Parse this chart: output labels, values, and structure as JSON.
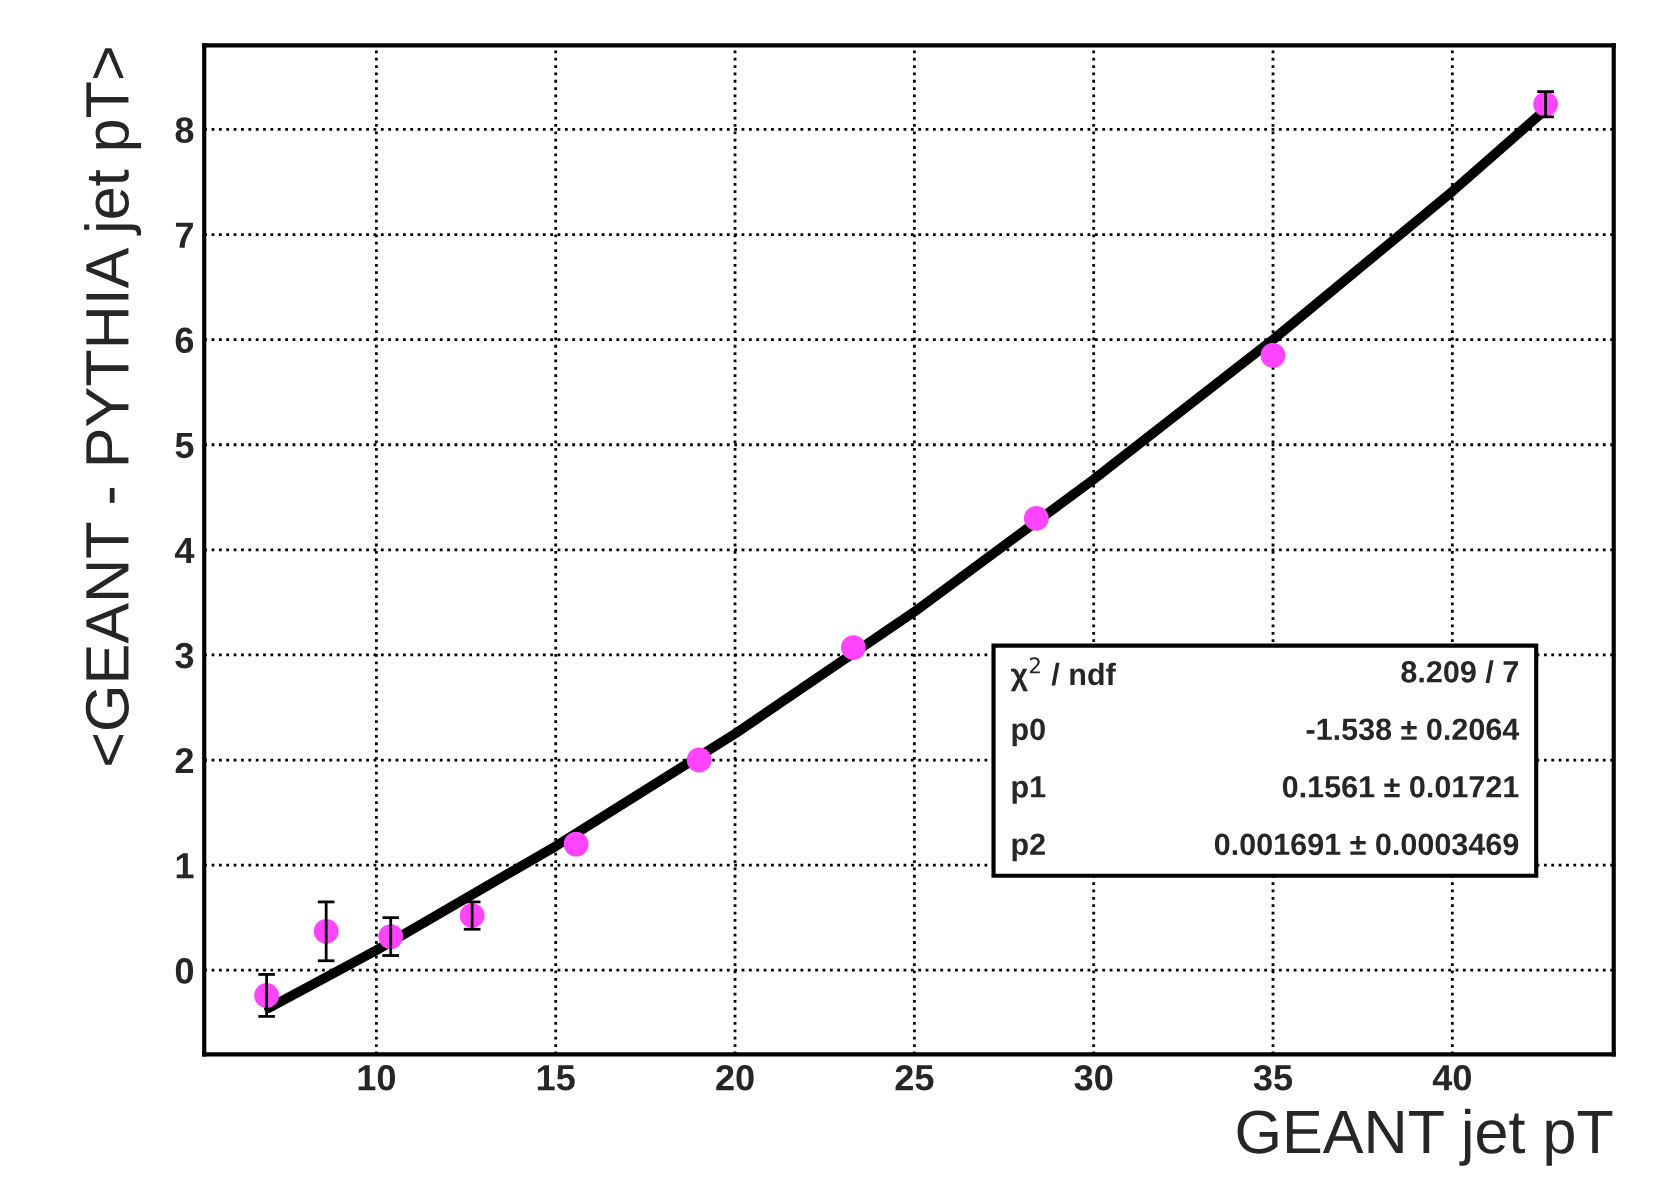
{
  "chart_data": {
    "type": "scatter",
    "xlabel": "GEANT jet pT",
    "ylabel": "<GEANT - PYTHIA jet pT>",
    "xlim": [
      5.2,
      44.5
    ],
    "ylim": [
      -0.8,
      8.8
    ],
    "xticks": [
      10,
      15,
      20,
      25,
      30,
      35,
      40
    ],
    "yticks": [
      0,
      1,
      2,
      3,
      4,
      5,
      6,
      7,
      8
    ],
    "grid": true,
    "series": [
      {
        "marker": "circle",
        "color": "#ff44ff",
        "x": [
          6.94,
          8.6,
          10.4,
          12.67,
          15.57,
          19.0,
          23.3,
          28.4,
          35.0,
          42.6
        ],
        "values": [
          -0.24,
          0.37,
          0.32,
          0.52,
          1.2,
          2.0,
          3.07,
          4.3,
          5.85,
          8.24
        ],
        "errors": [
          0.2,
          0.28,
          0.18,
          0.13,
          null,
          null,
          null,
          null,
          null,
          0.12
        ]
      },
      {
        "type": "line",
        "marker": "none",
        "color": "#000000",
        "x": [
          7,
          10,
          15,
          20,
          25,
          30,
          35,
          40,
          42.7
        ],
        "values": [
          -0.36,
          0.19,
          1.18,
          2.25,
          3.41,
          4.67,
          6.0,
          7.41,
          8.22
        ]
      }
    ],
    "annotations": [
      "χ$^{2}$ / ndf",
      "8.209 / 7",
      "p0",
      "-1.538 ± 0.2064",
      "p1",
      "0.1561 ± 0.01721",
      "p2",
      "0.001691 ± 0.0003469"
    ]
  }
}
